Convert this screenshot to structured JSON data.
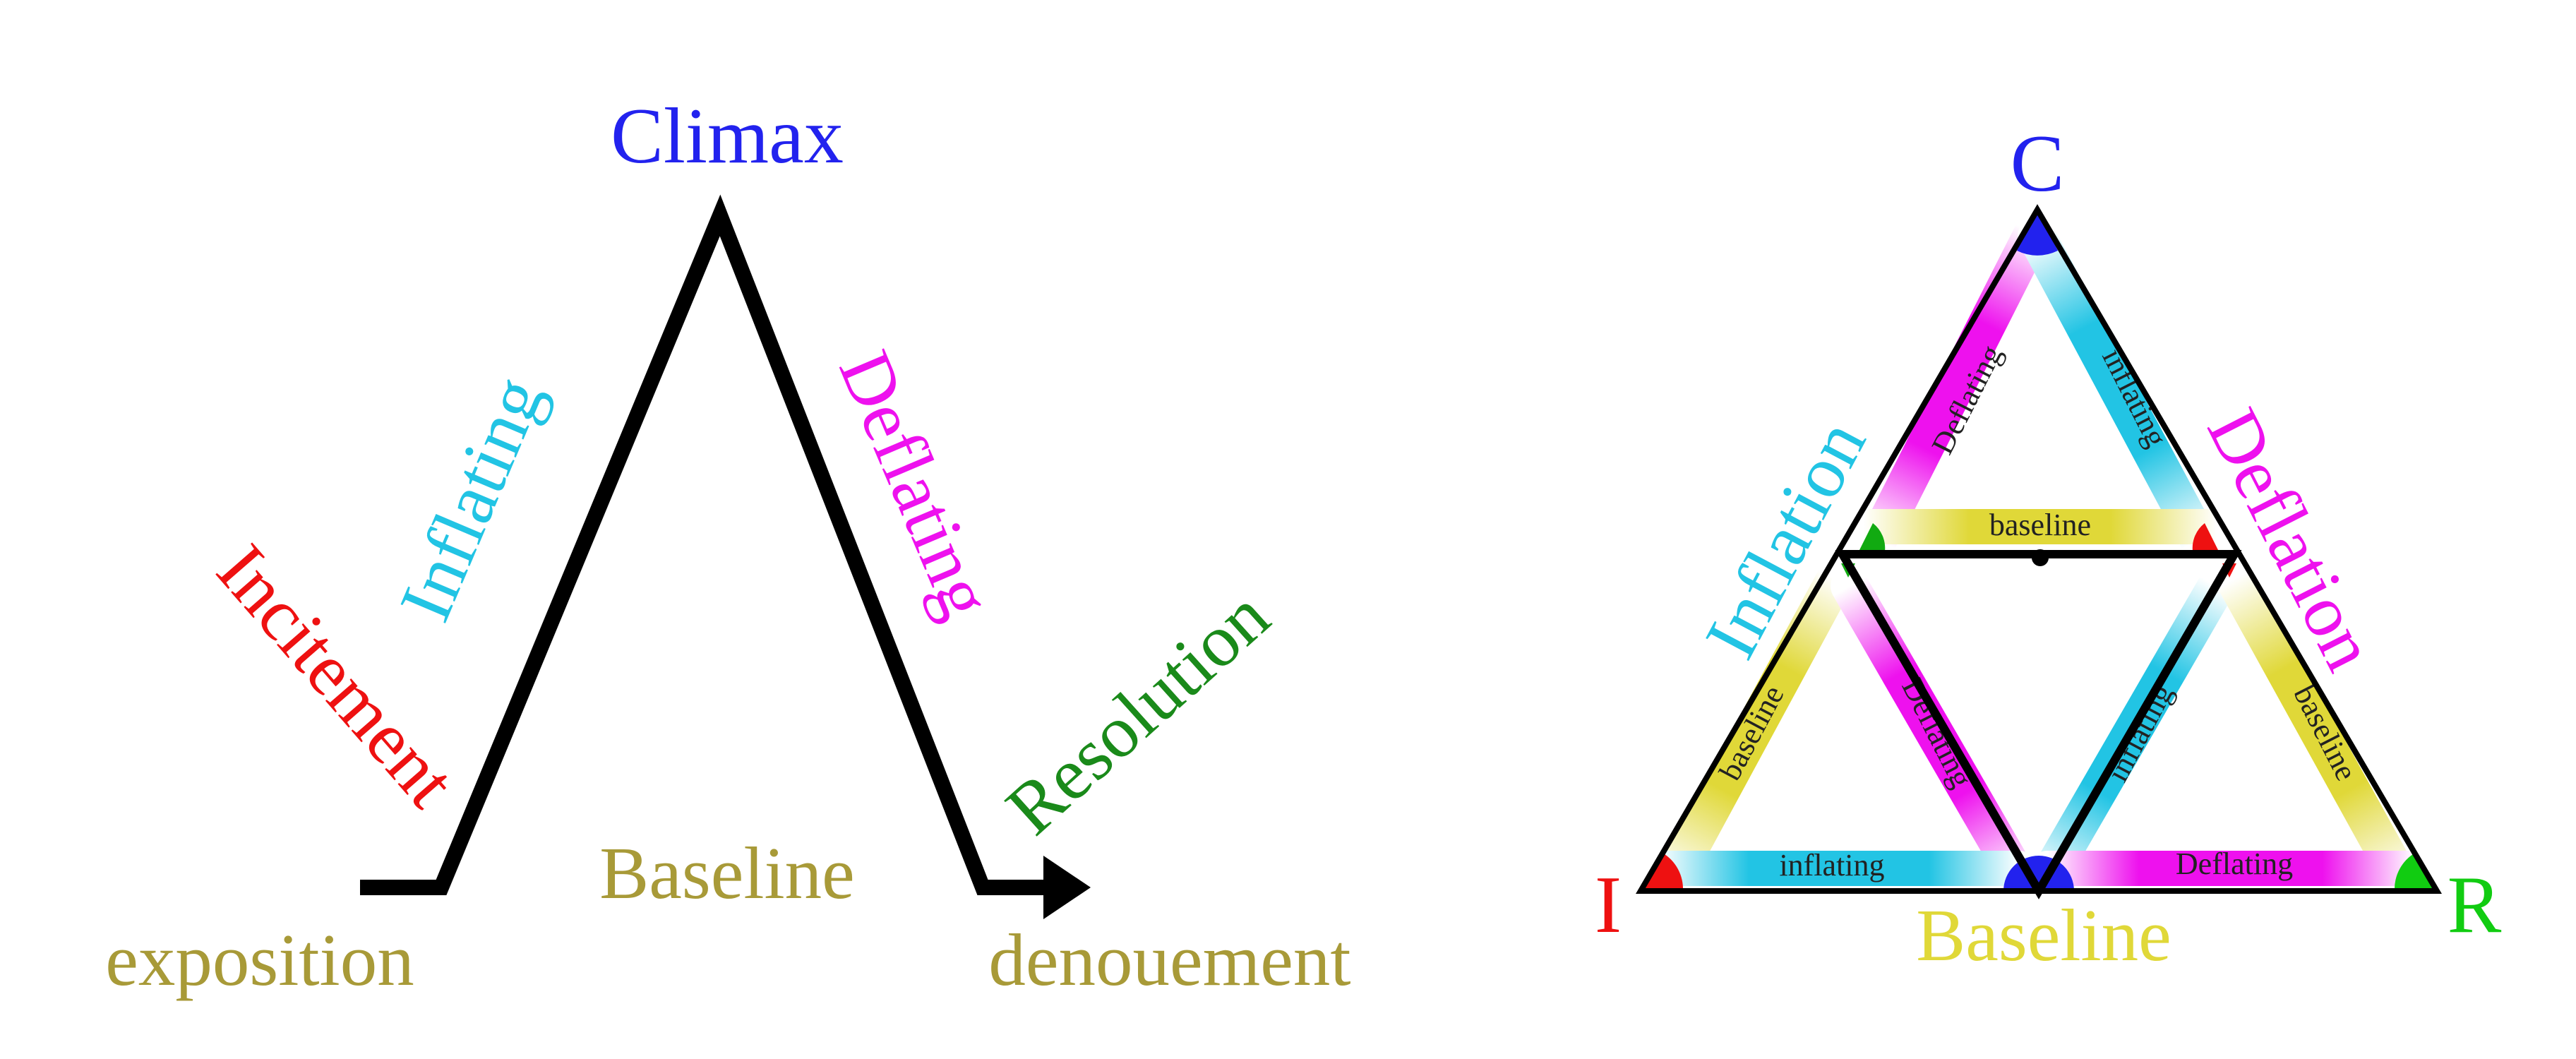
{
  "left_diagram": {
    "climax": "Climax",
    "inflating": "Inflating",
    "deflating": "Deflating",
    "incitement": "Incitement",
    "resolution": "Resolution",
    "baseline": "Baseline",
    "exposition": "exposition",
    "denouement": "denouement"
  },
  "right_diagram": {
    "vertex_c": "C",
    "vertex_i": "I",
    "vertex_r": "R",
    "inflation": "Inflation",
    "deflation": "Deflation",
    "baseline_bottom": "Baseline",
    "band_top_left": "Deflating",
    "band_top_right": "inflating",
    "band_top_base": "baseline",
    "band_bl_left": "baseline",
    "band_bl_right": "Deflating",
    "band_bl_base": "inflating",
    "band_br_left": "inflating",
    "band_br_right": "baseline",
    "band_br_base": "Deflating"
  },
  "colors": {
    "red": "#ee1111",
    "blue": "#2222ee",
    "cyan": "#22c4e4",
    "magenta": "#ee11ee",
    "green": "#1a8a1a",
    "bright_green": "#11cc11",
    "olive": "#a89a38",
    "yellow": "#e0d838",
    "black": "#000000"
  }
}
